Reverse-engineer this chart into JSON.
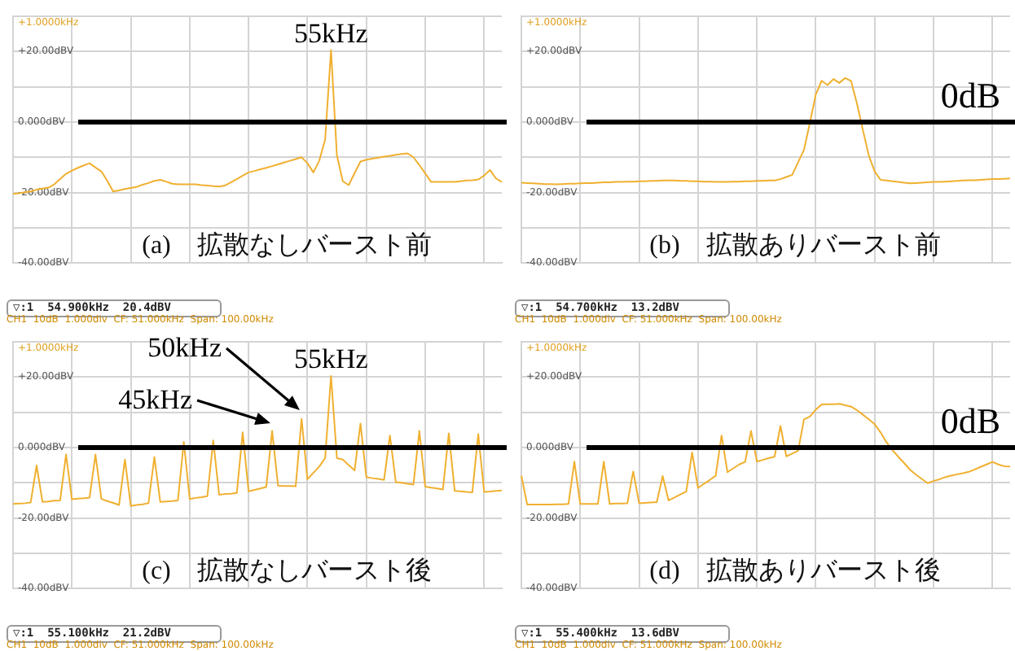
{
  "chart_data": [
    {
      "type": "line",
      "title": "(a)　拡散なしバースト前",
      "color": "#f0b030",
      "marker": "none",
      "grid": true,
      "ylim": [
        -40,
        30
      ],
      "yticks": [
        {
          "value": -40,
          "label": "-40.00dBV"
        },
        {
          "value": -30,
          "label": null
        },
        {
          "value": -20,
          "label": "-20.00dBV"
        },
        {
          "value": -10,
          "label": null
        },
        {
          "value": 0,
          "label": "0.000dBV"
        },
        {
          "value": 10,
          "label": null
        },
        {
          "value": 20,
          "label": "+20.00dBV"
        },
        {
          "value": 30,
          "label": null
        }
      ],
      "categories": [
        null,
        null,
        null,
        null,
        null,
        null,
        null,
        null,
        null,
        null,
        null,
        null,
        null,
        null,
        null,
        null,
        null,
        null,
        null,
        null,
        null,
        null,
        null,
        null,
        null,
        null,
        null,
        null,
        null,
        null,
        null,
        null,
        null,
        null,
        null,
        null,
        null,
        null,
        null,
        null,
        null,
        null,
        null,
        null,
        null,
        null,
        null,
        null,
        null,
        null,
        null,
        null,
        null,
        null,
        null,
        null,
        null,
        null,
        null,
        null,
        null,
        null,
        null,
        null,
        null,
        null,
        null,
        null,
        null,
        null,
        null,
        null,
        null,
        null,
        null,
        null,
        null,
        null,
        null,
        null,
        null,
        null,
        null,
        null
      ],
      "values": [
        -20.4,
        -20.2,
        -19.9,
        -19.7,
        -19.2,
        -18.9,
        -18.6,
        -17.7,
        -16.2,
        -14.7,
        -13.8,
        -13,
        -12.3,
        -11.7,
        -12.9,
        -14,
        -16.7,
        -19.7,
        -19.4,
        -19,
        -18.7,
        -18.4,
        -17.8,
        -17.3,
        -16.7,
        -16.4,
        -16.9,
        -17.5,
        -17.7,
        -17.7,
        -17.7,
        -17.7,
        -17.9,
        -18,
        -18.2,
        -18.3,
        -18,
        -17.1,
        -16.2,
        -15.2,
        -14.3,
        -13.9,
        -13.4,
        -13,
        -12.5,
        -12,
        -11.5,
        -11,
        -10.5,
        -10,
        -11.7,
        -14.3,
        -11,
        -5,
        20.4,
        -9.5,
        -16.8,
        -17.9,
        -14.5,
        -11.2,
        -10.7,
        -10.4,
        -10.1,
        -9.8,
        -9.6,
        -9.3,
        -9.1,
        -8.9,
        -10,
        -12.2,
        -14.6,
        -17,
        -17,
        -17,
        -17,
        -17,
        -16.8,
        -16.6,
        -16.5,
        -16.3,
        -15.2,
        -13.6,
        -16,
        -17
      ],
      "ref_lines": [
        {
          "axis": "y",
          "value": 0,
          "color": "#000000"
        }
      ],
      "annotations": [
        "▽:1  54.900kHz  20.4dBV",
        "CH1  10dB  1.000div  CF: 51.000kHz  Span: 100.00kHz",
        "+1.0000kHz",
        {
          "text": "55kHz",
          "y": 20.4
        }
      ]
    },
    {
      "type": "line",
      "title": "(b)　拡散ありバースト前",
      "color": "#f0b030",
      "marker": "none",
      "grid": true,
      "ylim": [
        -40,
        30
      ],
      "yticks": [
        {
          "value": -40,
          "label": "-40.00dBV"
        },
        {
          "value": -30,
          "label": null
        },
        {
          "value": -20,
          "label": "-20.00dBV"
        },
        {
          "value": -10,
          "label": null
        },
        {
          "value": 0,
          "label": "0.000dBV"
        },
        {
          "value": 10,
          "label": null
        },
        {
          "value": 20,
          "label": "+20.00dBV"
        },
        {
          "value": 30,
          "label": null
        }
      ],
      "categories": [
        null,
        null,
        null,
        null,
        null,
        null,
        null,
        null,
        null,
        null,
        null,
        null,
        null,
        null,
        null,
        null,
        null,
        null,
        null,
        null,
        null,
        null,
        null,
        null,
        null,
        null,
        null,
        null,
        null,
        null,
        null,
        null,
        null,
        null,
        null,
        null,
        null,
        null,
        null,
        null,
        null,
        null,
        null,
        null,
        null,
        null,
        null,
        null,
        null,
        null,
        null,
        null,
        null,
        null,
        null,
        null,
        null,
        null,
        null,
        null,
        null,
        null,
        null,
        null,
        null,
        null,
        null,
        null,
        null,
        null,
        null,
        null,
        null,
        null,
        null,
        null,
        null,
        null,
        null,
        null,
        null,
        null,
        null,
        null
      ],
      "values": [
        -17.2,
        -17.3,
        -17.4,
        -17.5,
        -17.6,
        -17.6,
        -17.7,
        -17.6,
        -17.5,
        -17.5,
        -17.4,
        -17.3,
        -17.3,
        -17.2,
        -17.1,
        -17.1,
        -17,
        -17,
        -16.9,
        -16.9,
        -16.8,
        -16.8,
        -16.7,
        -16.7,
        -16.6,
        -16.6,
        -16.6,
        -16.7,
        -16.7,
        -16.8,
        -16.8,
        -16.9,
        -16.9,
        -17,
        -17,
        -17,
        -16.9,
        -16.9,
        -16.8,
        -16.8,
        -16.7,
        -16.7,
        -16.6,
        -16.6,
        -16.2,
        -15.6,
        -15,
        -11.4,
        -7.9,
        -0.2,
        7.8,
        11.7,
        10.5,
        12.2,
        11.1,
        12.5,
        11.6,
        5.2,
        -2.3,
        -9.5,
        -14,
        -16.4,
        -16.6,
        -16.8,
        -17,
        -17.2,
        -17.4,
        -17.3,
        -17.2,
        -17.1,
        -17,
        -17,
        -16.9,
        -16.8,
        -16.7,
        -16.6,
        -16.5,
        -16.5,
        -16.4,
        -16.3,
        -16.2,
        -16.2,
        -16.1,
        -16
      ],
      "ref_lines": [
        {
          "axis": "y",
          "value": 0,
          "label": "0dB",
          "color": "#000000"
        }
      ],
      "annotations": [
        "▽:1  54.700kHz  13.2dBV",
        "CH1  10dB  1.000div  CF: 51.000kHz  Span: 100.00kHz",
        "+1.0000kHz"
      ]
    },
    {
      "type": "line",
      "title": "(c)　拡散なしバースト後",
      "color": "#f0b030",
      "marker": "none",
      "grid": true,
      "ylim": [
        -40,
        30
      ],
      "yticks": [
        {
          "value": -40,
          "label": "-40.00dBV"
        },
        {
          "value": -30,
          "label": null
        },
        {
          "value": -20,
          "label": "-20.00dBV"
        },
        {
          "value": -10,
          "label": null
        },
        {
          "value": 0,
          "label": "0.000dBV"
        },
        {
          "value": 10,
          "label": null
        },
        {
          "value": 20,
          "label": "+20.00dBV"
        },
        {
          "value": 30,
          "label": null
        }
      ],
      "categories": [
        null,
        null,
        null,
        null,
        null,
        null,
        null,
        null,
        null,
        null,
        null,
        null,
        null,
        null,
        null,
        null,
        null,
        null,
        null,
        null,
        null,
        null,
        null,
        null,
        null,
        null,
        null,
        null,
        null,
        null,
        null,
        null,
        null,
        null,
        null,
        null,
        null,
        null,
        null,
        null,
        null,
        null,
        null,
        null,
        null,
        null,
        null,
        null,
        null,
        null,
        null,
        null,
        null,
        null,
        null,
        null,
        null,
        null,
        null,
        null,
        null,
        null,
        null,
        null,
        null,
        null,
        null,
        null,
        null,
        null,
        null,
        null,
        null,
        null,
        null,
        null,
        null,
        null,
        null,
        null,
        null,
        null,
        null,
        null
      ],
      "values": [
        -16,
        -15.9,
        -15.8,
        -15.6,
        -5.1,
        -15.4,
        -15.3,
        -15.1,
        -15,
        -2,
        -14.7,
        -14.5,
        -14.4,
        -14.2,
        -2,
        -14.6,
        -15.2,
        -15.7,
        -16.3,
        -3.4,
        -16.6,
        -16.3,
        -16.1,
        -15.8,
        -2.7,
        -15.4,
        -15.3,
        -15.2,
        -15,
        1.6,
        -14.6,
        -14.3,
        -14.1,
        -13.8,
        2,
        -13.4,
        -13.2,
        -13.1,
        -12.9,
        4.3,
        -12.4,
        -12,
        -11.6,
        -11.2,
        4.7,
        -10.8,
        -10.9,
        -10.9,
        -11,
        8.1,
        -9,
        -7.2,
        -5.4,
        -3,
        20.3,
        -3,
        -3.4,
        -5,
        -6.5,
        6.8,
        -8.4,
        -8.7,
        -8.9,
        -9.2,
        3.4,
        -9.8,
        -10,
        -10.3,
        -10.5,
        4.7,
        -11.1,
        -11.4,
        -11.6,
        -11.9,
        4,
        -12.3,
        -12.4,
        -12.6,
        -12.7,
        3.8,
        -12.6,
        -12.5,
        -12.3,
        -12.2
      ],
      "ref_lines": [
        {
          "axis": "y",
          "value": 0,
          "color": "#000000"
        }
      ],
      "annotations": [
        "▽:1  55.100kHz  21.2dBV",
        "CH1  10dB  1.000div  CF: 51.000kHz  Span: 100.00kHz",
        "+1.0000kHz",
        "45kHz",
        "50kHz",
        {
          "text": "55kHz",
          "y": 20.3
        }
      ]
    },
    {
      "type": "line",
      "title": "(d)　拡散ありバースト後",
      "color": "#f0b030",
      "marker": "none",
      "grid": true,
      "ylim": [
        -40,
        30
      ],
      "yticks": [
        {
          "value": -40,
          "label": "-40.00dBV"
        },
        {
          "value": -30,
          "label": null
        },
        {
          "value": -20,
          "label": "-20.00dBV"
        },
        {
          "value": -10,
          "label": null
        },
        {
          "value": 0,
          "label": "0.000dBV"
        },
        {
          "value": 10,
          "label": null
        },
        {
          "value": 20,
          "label": "+20.00dBV"
        },
        {
          "value": 30,
          "label": null
        }
      ],
      "categories": [
        null,
        null,
        null,
        null,
        null,
        null,
        null,
        null,
        null,
        null,
        null,
        null,
        null,
        null,
        null,
        null,
        null,
        null,
        null,
        null,
        null,
        null,
        null,
        null,
        null,
        null,
        null,
        null,
        null,
        null,
        null,
        null,
        null,
        null,
        null,
        null,
        null,
        null,
        null,
        null,
        null,
        null,
        null,
        null,
        null,
        null,
        null,
        null,
        null,
        null,
        null,
        null,
        null,
        null,
        null,
        null,
        null,
        null,
        null,
        null,
        null,
        null,
        null,
        null,
        null,
        null,
        null,
        null,
        null,
        null,
        null,
        null,
        null,
        null,
        null,
        null,
        null,
        null,
        null,
        null,
        null,
        null,
        null,
        null
      ],
      "values": [
        -8,
        -16.2,
        -16.2,
        -16.2,
        -16.2,
        -16.2,
        -16.1,
        -16.1,
        -16,
        -4,
        -16,
        -16,
        -16,
        -16,
        -4,
        -16,
        -15.9,
        -15.9,
        -15.8,
        -6.8,
        -15.8,
        -15.7,
        -15.6,
        -15.5,
        -8.1,
        -15,
        -14.2,
        -13.3,
        -12.5,
        -1.4,
        -11.5,
        -10.3,
        -9.2,
        -8,
        3.4,
        -7,
        -5.9,
        -4.8,
        -4.1,
        4.7,
        -4,
        -3.5,
        -3,
        -2.6,
        6.1,
        -2.5,
        -1.7,
        -0.9,
        8,
        8.8,
        10.7,
        12.2,
        12.3,
        12.3,
        12.4,
        12,
        11.6,
        10.6,
        9.3,
        8,
        6.6,
        4.3,
        1.5,
        -0.7,
        -2.6,
        -4.4,
        -6.3,
        -7.7,
        -8.9,
        -10.1,
        -9.5,
        -9,
        -8.4,
        -8,
        -7.6,
        -7.3,
        -6.9,
        -6.2,
        -5.5,
        -4.8,
        -4.1,
        -4.8,
        -5.3,
        -5.4
      ],
      "ref_lines": [
        {
          "axis": "y",
          "value": 0,
          "label": "0dB",
          "color": "#000000"
        }
      ],
      "annotations": [
        "▽:1  55.400kHz  13.6dBV",
        "CH1  10dB  1.000div  CF: 51.000kHz  Span: 100.00kHz",
        "+1.0000kHz"
      ]
    }
  ]
}
